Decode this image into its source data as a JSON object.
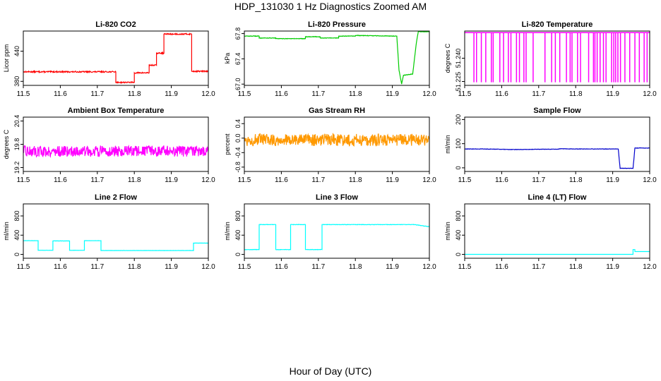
{
  "main_title": "HDP_131030  1 Hz Diagnostics Zoomed AM",
  "x_axis_title": "Hour of Day (UTC)",
  "chart_data": [
    {
      "type": "line",
      "title": "Li-820 CO2",
      "ylabel": "Licor ppm",
      "color": "#ff0000",
      "xlim": [
        11.5,
        12.0
      ],
      "ylim": [
        372,
        480
      ],
      "xticks": [
        11.5,
        11.6,
        11.7,
        11.8,
        11.9,
        12.0
      ],
      "yticks": [
        380,
        440
      ],
      "yticklabels": [
        "380",
        "440"
      ],
      "noise": 1.2,
      "series": [
        {
          "x": [
            11.5,
            11.75,
            11.75,
            11.8,
            11.8,
            11.84,
            11.84,
            11.86,
            11.86,
            11.88,
            11.88,
            11.955,
            11.955,
            12.0
          ],
          "y": [
            399,
            399,
            378,
            378,
            397,
            397,
            412,
            412,
            436,
            436,
            474,
            474,
            400,
            400
          ]
        }
      ]
    },
    {
      "type": "line",
      "title": "Li-820 Pressure",
      "ylabel": "kPa",
      "color": "#00cc00",
      "xlim": [
        11.5,
        12.0
      ],
      "ylim": [
        66.98,
        67.84
      ],
      "xticks": [
        11.5,
        11.6,
        11.7,
        11.8,
        11.9,
        12.0
      ],
      "yticks": [
        67.0,
        67.4,
        67.8
      ],
      "yticklabels": [
        "67.0",
        "67.4",
        "67.8"
      ],
      "noise": 0.004,
      "series": [
        {
          "x": [
            11.5,
            11.54,
            11.54,
            11.585,
            11.585,
            11.665,
            11.665,
            11.705,
            11.705,
            11.755,
            11.755,
            11.8,
            11.8,
            11.912,
            11.918,
            11.925,
            11.93,
            11.955,
            11.965,
            11.97,
            12.0
          ],
          "y": [
            67.76,
            67.76,
            67.73,
            67.73,
            67.72,
            67.72,
            67.75,
            67.75,
            67.73,
            67.73,
            67.76,
            67.76,
            67.77,
            67.76,
            67.22,
            67.0,
            67.14,
            67.16,
            67.66,
            67.83,
            67.83
          ]
        }
      ]
    },
    {
      "type": "line",
      "title": "Li-820 Temperature",
      "ylabel": "degrees C",
      "color": "#ff00ff",
      "xlim": [
        11.5,
        12.0
      ],
      "ylim": [
        51.2225,
        51.2575
      ],
      "xticks": [
        11.5,
        11.6,
        11.7,
        11.8,
        11.9,
        12.0
      ],
      "yticks": [
        51.225,
        51.24
      ],
      "yticklabels": [
        "51.225",
        "51.240"
      ],
      "noise": 0,
      "baseline": 51.2565,
      "drop_value": 51.2245,
      "drop_times": [
        11.525,
        11.532,
        11.545,
        11.557,
        11.572,
        11.577,
        11.595,
        11.605,
        11.618,
        11.625,
        11.64,
        11.648,
        11.66,
        11.666,
        11.685,
        11.717,
        11.735,
        11.745,
        11.757,
        11.775,
        11.785,
        11.79,
        11.805,
        11.813,
        11.835,
        11.848,
        11.852,
        11.858,
        11.866,
        11.875,
        11.882,
        11.897,
        11.903,
        11.908,
        11.914,
        11.921,
        11.933,
        11.946,
        11.96,
        11.972,
        11.985,
        11.993
      ],
      "series": []
    },
    {
      "type": "line",
      "title": "Ambient Box Temperature",
      "ylabel": "degrees C",
      "color": "#ff00ff",
      "xlim": [
        11.5,
        12.0
      ],
      "ylim": [
        19.1,
        20.5
      ],
      "xticks": [
        11.5,
        11.6,
        11.7,
        11.8,
        11.9,
        12.0
      ],
      "yticks": [
        19.2,
        19.8,
        20.4
      ],
      "yticklabels": [
        "19.2",
        "19.8",
        "20.4"
      ],
      "noise": 0.14,
      "series": [
        {
          "x": [
            11.5,
            12.0
          ],
          "y": [
            19.62,
            19.62
          ]
        }
      ]
    },
    {
      "type": "line",
      "title": "Gas Stream RH",
      "ylabel": "percent",
      "color": "#ff9900",
      "xlim": [
        11.5,
        12.0
      ],
      "ylim": [
        -0.92,
        0.58
      ],
      "xticks": [
        11.5,
        11.6,
        11.7,
        11.8,
        11.9,
        12.0
      ],
      "yticks": [
        -0.8,
        -0.4,
        0.0,
        0.4
      ],
      "yticklabels": [
        "-0.8",
        "-0.4",
        "0.0",
        "0.4"
      ],
      "noise": 0.17,
      "series": [
        {
          "x": [
            11.5,
            12.0
          ],
          "y": [
            -0.05,
            -0.05
          ]
        }
      ]
    },
    {
      "type": "line",
      "title": "Sample Flow",
      "ylabel": "ml/min",
      "color": "#0000cc",
      "xlim": [
        11.5,
        12.0
      ],
      "ylim": [
        -15,
        210
      ],
      "xticks": [
        11.5,
        11.6,
        11.7,
        11.8,
        11.9,
        12.0
      ],
      "yticks": [
        0,
        100,
        200
      ],
      "yticklabels": [
        "0",
        "100",
        "200"
      ],
      "noise": 0.8,
      "series": [
        {
          "x": [
            11.5,
            11.55,
            11.6,
            11.62,
            11.67,
            11.7,
            11.75,
            11.76,
            11.8,
            11.85,
            11.915,
            11.92,
            11.955,
            11.96,
            12.0
          ],
          "y": [
            78,
            78,
            77,
            76,
            76,
            77,
            77,
            79,
            78,
            78,
            78,
            -2,
            -2,
            82,
            82
          ]
        }
      ]
    },
    {
      "type": "line",
      "title": "Line 2 Flow",
      "ylabel": "ml/min",
      "color": "#00ffff",
      "xlim": [
        11.5,
        12.0
      ],
      "ylim": [
        -80,
        1050
      ],
      "xticks": [
        11.5,
        11.6,
        11.7,
        11.8,
        11.9,
        12.0
      ],
      "yticks": [
        0,
        400,
        800
      ],
      "yticklabels": [
        "0",
        "400",
        "800"
      ],
      "noise": 2,
      "series": [
        {
          "x": [
            11.5,
            11.54,
            11.54,
            11.58,
            11.58,
            11.625,
            11.625,
            11.665,
            11.665,
            11.71,
            11.71,
            11.96,
            11.96,
            12.0
          ],
          "y": [
            285,
            285,
            85,
            85,
            280,
            280,
            85,
            85,
            285,
            285,
            80,
            80,
            235,
            235
          ]
        }
      ]
    },
    {
      "type": "line",
      "title": "Line 3 Flow",
      "ylabel": "ml/min",
      "color": "#00ffff",
      "xlim": [
        11.5,
        12.0
      ],
      "ylim": [
        -80,
        1050
      ],
      "xticks": [
        11.5,
        11.6,
        11.7,
        11.8,
        11.9,
        12.0
      ],
      "yticks": [
        0,
        400,
        800
      ],
      "yticklabels": [
        "0",
        "400",
        "800"
      ],
      "noise": 4,
      "series": [
        {
          "x": [
            11.5,
            11.54,
            11.54,
            11.585,
            11.585,
            11.625,
            11.625,
            11.665,
            11.665,
            11.71,
            11.71,
            11.96,
            12.0
          ],
          "y": [
            100,
            100,
            620,
            620,
            100,
            100,
            620,
            620,
            100,
            100,
            620,
            620,
            575
          ]
        }
      ]
    },
    {
      "type": "line",
      "title": "Line 4 (LT) Flow",
      "ylabel": "ml/min",
      "color": "#00ffff",
      "xlim": [
        11.5,
        12.0
      ],
      "ylim": [
        -80,
        1050
      ],
      "xticks": [
        11.5,
        11.6,
        11.7,
        11.8,
        11.9,
        12.0
      ],
      "yticks": [
        0,
        400,
        800
      ],
      "yticklabels": [
        "0",
        "400",
        "800"
      ],
      "noise": 0,
      "series": [
        {
          "x": [
            11.5,
            11.955,
            11.955,
            11.96,
            11.96,
            12.0
          ],
          "y": [
            0,
            0,
            100,
            100,
            60,
            60
          ]
        }
      ]
    }
  ]
}
